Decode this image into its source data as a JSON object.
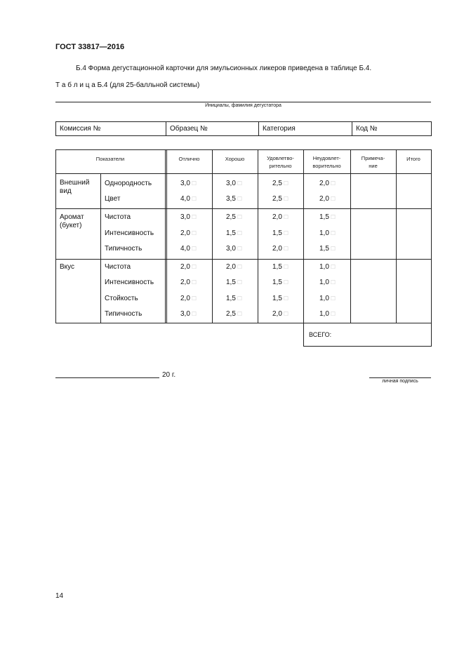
{
  "doc_id": "ГОСТ 33817—2016",
  "intro": "Б.4 Форма дегустационной карточки для эмульсионных ликеров приведена в таблице Б.4.",
  "table_caption_label": "Т а б л и ц а",
  "table_caption_text": "Б.4 (для 25-балльной системы)",
  "taster_caption": "Инициалы, фамилия дегустатора",
  "info_fields": [
    "Комиссия №",
    "Образец №",
    "Категория",
    "Код №"
  ],
  "headers": {
    "indicators": "Показатели",
    "excellent": "Отлично",
    "good": "Хорошо",
    "satisfactory": [
      "Удовлетво-",
      "рительно"
    ],
    "unsatisfactory": [
      "Неудовлет-",
      "ворительно"
    ],
    "note": [
      "Примеча-",
      "ние"
    ],
    "total": "Итого"
  },
  "groups": [
    {
      "name": [
        "Внешний",
        "вид"
      ],
      "rows": [
        {
          "label": "Однородность",
          "values": [
            "3,0",
            "3,0",
            "2,5",
            "2,0"
          ]
        },
        {
          "label": "Цвет",
          "values": [
            "4,0",
            "3,5",
            "2,5",
            "2,0"
          ]
        }
      ]
    },
    {
      "name": [
        "Аромат",
        "(букет)"
      ],
      "rows": [
        {
          "label": "Чистота",
          "values": [
            "3,0",
            "2,5",
            "2,0",
            "1,5"
          ]
        },
        {
          "label": "Интенсивность",
          "values": [
            "2,0",
            "1,5",
            "1,5",
            "1,0"
          ]
        },
        {
          "label": "Типичность",
          "values": [
            "4,0",
            "3,0",
            "2,0",
            "1,5"
          ]
        }
      ]
    },
    {
      "name": [
        "Вкус"
      ],
      "rows": [
        {
          "label": "Чистота",
          "values": [
            "2,0",
            "2,0",
            "1,5",
            "1,0"
          ]
        },
        {
          "label": "Интенсивность",
          "values": [
            "2,0",
            "1,5",
            "1,5",
            "1,0"
          ]
        },
        {
          "label": "Стойкость",
          "values": [
            "2,0",
            "1,5",
            "1,5",
            "1,0"
          ]
        },
        {
          "label": "Типичность",
          "values": [
            "3,0",
            "2,5",
            "2,0",
            "1,0"
          ]
        }
      ]
    }
  ],
  "checkbox_icon": "checkbox-icon",
  "total_label": "ВСЕГО:",
  "date_suffix": "20 г.",
  "signature_caption": "личная подпись",
  "page_number": "14"
}
